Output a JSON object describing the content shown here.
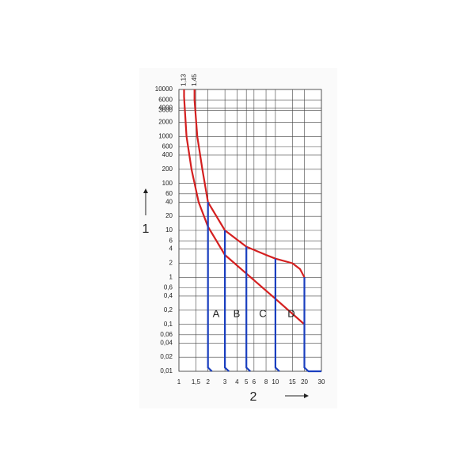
{
  "chart_data": {
    "type": "line",
    "x_label": "2",
    "y_label": "1",
    "log_x": true,
    "log_y": true,
    "grid": true,
    "xlim": [
      1,
      30
    ],
    "ylim": [
      0.01,
      10000
    ],
    "xticks": [
      1,
      {
        "value": 1.5,
        "label": "1,5"
      },
      2,
      3,
      4,
      5,
      6,
      8,
      10,
      15,
      20,
      30
    ],
    "yticks": [
      {
        "value": 0.01,
        "label": "0,01"
      },
      {
        "value": 0.02,
        "label": "0,02"
      },
      {
        "value": 0.04,
        "label": "0,04"
      },
      {
        "value": 0.06,
        "label": "0,06"
      },
      {
        "value": 0.1,
        "label": "0,1"
      },
      {
        "value": 0.2,
        "label": "0,2"
      },
      {
        "value": 0.4,
        "label": "0,4"
      },
      {
        "value": 0.6,
        "label": "0,6"
      },
      1,
      2,
      4,
      6,
      10,
      20,
      40,
      60,
      100,
      200,
      400,
      600,
      1000,
      2000,
      3600,
      4000,
      6000,
      10000
    ],
    "top_ticks": [
      {
        "value": 1.13,
        "label": "1,13"
      },
      {
        "value": 1.45,
        "label": "1,45"
      }
    ],
    "annotations": [
      "A",
      "B",
      "C",
      "D"
    ],
    "series": [
      {
        "color": "#d42020",
        "x": [
          1.13,
          1.13,
          1.2,
          1.35,
          1.6,
          2,
          3,
          5,
          10,
          20
        ],
        "values": [
          10000,
          7000,
          1000,
          200,
          40,
          12,
          3,
          1.2,
          0.35,
          0.1
        ]
      },
      {
        "color": "#d42020",
        "x": [
          1.45,
          1.45,
          1.55,
          1.75,
          2,
          3,
          5,
          8,
          10,
          15,
          18,
          20
        ],
        "values": [
          10000,
          6000,
          1000,
          200,
          40,
          10,
          4.5,
          3,
          2.5,
          2,
          1.5,
          1
        ]
      },
      {
        "color": "#1a3fbf",
        "x": [
          2,
          2,
          2.2
        ],
        "values": [
          40,
          0.012,
          0.01
        ]
      },
      {
        "color": "#1a3fbf",
        "x": [
          3,
          3,
          3.3
        ],
        "values": [
          10,
          0.012,
          0.01
        ]
      },
      {
        "color": "#1a3fbf",
        "x": [
          5,
          5,
          5.5
        ],
        "values": [
          4.5,
          0.012,
          0.01
        ]
      },
      {
        "color": "#1a3fbf",
        "x": [
          10,
          10,
          11
        ],
        "values": [
          2.5,
          0.012,
          0.01
        ]
      },
      {
        "color": "#1a3fbf",
        "x": [
          20,
          20,
          22,
          30
        ],
        "values": [
          1,
          0.012,
          0.01,
          0.01
        ]
      }
    ]
  }
}
